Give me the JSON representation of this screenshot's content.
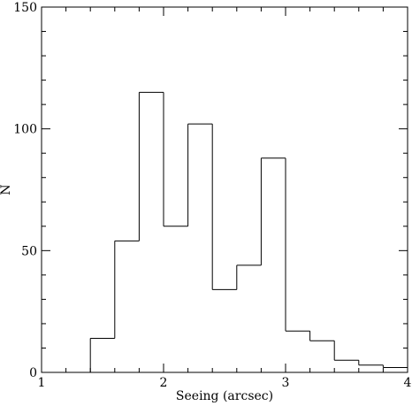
{
  "chart_data": {
    "type": "bar",
    "histogram": true,
    "title": "",
    "xlabel": "Seeing (arcsec)",
    "ylabel": "N",
    "xlim": [
      1,
      4
    ],
    "ylim": [
      0,
      150
    ],
    "x_major_ticks": [
      1,
      2,
      3,
      4
    ],
    "x_tick_labels": [
      "1",
      "2",
      "3",
      "4"
    ],
    "x_minor_step": 0.2,
    "y_major_ticks": [
      0,
      50,
      100,
      150
    ],
    "y_tick_labels": [
      "0",
      "50",
      "100",
      "150"
    ],
    "y_minor_step": 10,
    "grid": false,
    "bins": [
      {
        "x0": 1.0,
        "x1": 1.2,
        "value": 0
      },
      {
        "x0": 1.2,
        "x1": 1.4,
        "value": 0
      },
      {
        "x0": 1.4,
        "x1": 1.6,
        "value": 14
      },
      {
        "x0": 1.6,
        "x1": 1.8,
        "value": 54
      },
      {
        "x0": 1.8,
        "x1": 2.0,
        "value": 115
      },
      {
        "x0": 2.0,
        "x1": 2.2,
        "value": 60
      },
      {
        "x0": 2.2,
        "x1": 2.4,
        "value": 102
      },
      {
        "x0": 2.4,
        "x1": 2.6,
        "value": 34
      },
      {
        "x0": 2.6,
        "x1": 2.8,
        "value": 44
      },
      {
        "x0": 2.8,
        "x1": 3.0,
        "value": 88
      },
      {
        "x0": 3.0,
        "x1": 3.2,
        "value": 17
      },
      {
        "x0": 3.2,
        "x1": 3.4,
        "value": 13
      },
      {
        "x0": 3.4,
        "x1": 3.6,
        "value": 5
      },
      {
        "x0": 3.6,
        "x1": 3.8,
        "value": 3
      },
      {
        "x0": 3.8,
        "x1": 4.0,
        "value": 2
      }
    ],
    "colors": {
      "line": "#000000",
      "background": "#ffffff"
    }
  }
}
